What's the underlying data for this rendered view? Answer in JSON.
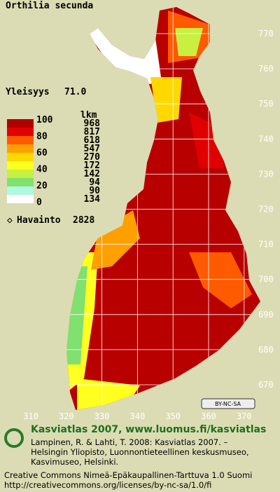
{
  "title": "Orthilia secunda",
  "frequency": {
    "label": "Yleisyys",
    "value": "71.0"
  },
  "legend": {
    "count_header": "lkm",
    "scale": [
      "100",
      "80",
      "60",
      "40",
      "20",
      "0"
    ],
    "counts": [
      "968",
      "817",
      "618",
      "547",
      "270",
      "172",
      "142",
      "94",
      "90",
      "134"
    ],
    "colors": [
      "#b00000",
      "#e00000",
      "#ff5a00",
      "#ffa000",
      "#ffd800",
      "#ffff20",
      "#c8f040",
      "#80e070",
      "#b0f8e0",
      "#ffffff"
    ]
  },
  "observation": {
    "label": "Havainto",
    "value": "2828"
  },
  "axes": {
    "y": [
      "770",
      "760",
      "750",
      "740",
      "730",
      "720",
      "710",
      "700",
      "690",
      "680",
      "670"
    ],
    "x": [
      "310",
      "320",
      "330",
      "340",
      "350",
      "360",
      "370"
    ]
  },
  "license_badge": "BY-NC-SA",
  "footer": {
    "heading": "Kasviatlas 2007, www.luomus.fi/kasviatlas",
    "citation": [
      "Lampinen, R. & Lahti, T. 2008: Kasviatlas 2007. –",
      "Helsingin Yliopisto, Luonnontieteellinen keskusmuseo,",
      "Kasvimuseo, Helsinki."
    ],
    "license": [
      "Creative Commons Nimeä-Epäkaupallinen-Tarttuva 1.0 Suomi",
      "http://creativecommons.org/licenses/by-nc-sa/1.0/fi"
    ]
  }
}
